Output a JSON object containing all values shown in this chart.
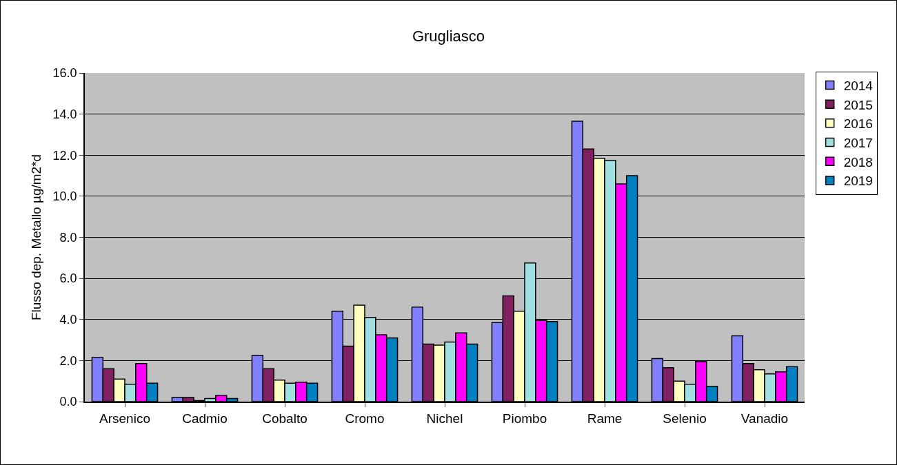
{
  "chart_data": {
    "type": "bar",
    "title": "Grugliasco",
    "ylabel": "Flusso dep. Metallo µg/m2*d",
    "categories": [
      "Arsenico",
      "Cadmio",
      "Cobalto",
      "Cromo",
      "Nichel",
      "Piombo",
      "Rame",
      "Selenio",
      "Vanadio"
    ],
    "series": [
      {
        "name": "2014",
        "color": "#8080ff",
        "values": [
          2.15,
          0.2,
          2.25,
          4.4,
          4.6,
          3.85,
          13.65,
          2.1,
          3.2
        ]
      },
      {
        "name": "2015",
        "color": "#802060",
        "values": [
          1.6,
          0.2,
          1.6,
          2.7,
          2.8,
          5.15,
          12.3,
          1.65,
          1.85
        ]
      },
      {
        "name": "2016",
        "color": "#ffffc0",
        "values": [
          1.1,
          0.05,
          1.05,
          4.7,
          2.75,
          4.4,
          11.85,
          1.0,
          1.55
        ]
      },
      {
        "name": "2017",
        "color": "#a0e0e0",
        "values": [
          0.85,
          0.15,
          0.9,
          4.1,
          2.9,
          6.75,
          11.75,
          0.85,
          1.35
        ]
      },
      {
        "name": "2018",
        "color": "#ff00ff",
        "values": [
          1.85,
          0.3,
          0.95,
          3.25,
          3.35,
          3.95,
          10.6,
          1.95,
          1.45
        ]
      },
      {
        "name": "2019",
        "color": "#0080c0",
        "values": [
          0.9,
          0.15,
          0.9,
          3.1,
          2.8,
          3.9,
          11.0,
          0.75,
          1.7
        ]
      }
    ],
    "ylim": [
      0,
      16
    ],
    "yticks": [
      {
        "value": 0,
        "label": "0.0"
      },
      {
        "value": 2,
        "label": "2.0"
      },
      {
        "value": 4,
        "label": "4.0"
      },
      {
        "value": 6,
        "label": "6.0"
      },
      {
        "value": 8,
        "label": "8.0"
      },
      {
        "value": 10,
        "label": "10.0"
      },
      {
        "value": 12,
        "label": "12.0"
      },
      {
        "value": 14,
        "label": "14.0"
      },
      {
        "value": 16,
        "label": "16.0"
      }
    ],
    "grid": "y",
    "legend": "right"
  }
}
